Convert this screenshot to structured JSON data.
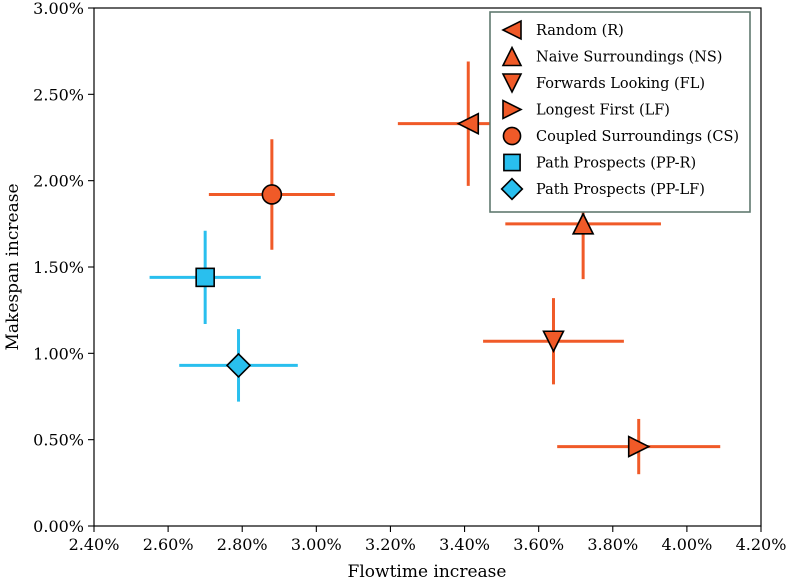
{
  "chart_data": {
    "type": "scatter",
    "title": "",
    "xlabel": "Flowtime increase",
    "ylabel": "Makespan increase",
    "xlim": [
      0.024,
      0.042
    ],
    "ylim": [
      0.0,
      0.03
    ],
    "xticks": [
      0.024,
      0.026,
      0.028,
      0.03,
      0.032,
      0.034,
      0.036,
      0.038,
      0.04,
      0.042
    ],
    "yticks": [
      0.0,
      0.005,
      0.01,
      0.015,
      0.02,
      0.025,
      0.03
    ],
    "xtick_labels": [
      "2.40%",
      "2.60%",
      "2.80%",
      "3.00%",
      "3.20%",
      "3.40%",
      "3.60%",
      "3.80%",
      "4.00%",
      "4.20%"
    ],
    "ytick_labels": [
      "0.00%",
      "0.50%",
      "1.00%",
      "1.50%",
      "2.00%",
      "2.50%",
      "3.00%"
    ],
    "grid": false,
    "legend_position": "top-right",
    "colors": {
      "orange": "#f05a28",
      "cyan": "#29bfee",
      "edge": "#000000"
    },
    "series": [
      {
        "name": "Random (R)",
        "marker": "triangle-left",
        "color": "#f05a28",
        "x": 0.0341,
        "y": 0.0233,
        "xerr": 0.0019,
        "yerr": 0.0036
      },
      {
        "name": "Naive Surroundings (NS)",
        "marker": "triangle-up",
        "color": "#f05a28",
        "x": 0.0372,
        "y": 0.0175,
        "xerr": 0.0021,
        "yerr": 0.0032
      },
      {
        "name": "Forwards Looking (FL)",
        "marker": "triangle-down",
        "color": "#f05a28",
        "x": 0.0364,
        "y": 0.0107,
        "xerr": 0.0019,
        "yerr": 0.0025
      },
      {
        "name": "Longest First (LF)",
        "marker": "triangle-right",
        "color": "#f05a28",
        "x": 0.0387,
        "y": 0.0046,
        "xerr": 0.0022,
        "yerr": 0.0016
      },
      {
        "name": "Coupled Surroundings (CS)",
        "marker": "circle",
        "color": "#f05a28",
        "x": 0.0288,
        "y": 0.0192,
        "xerr": 0.0017,
        "yerr": 0.0032
      },
      {
        "name": "Path Prospects (PP-R)",
        "marker": "square",
        "color": "#29bfee",
        "x": 0.027,
        "y": 0.0144,
        "xerr": 0.0015,
        "yerr": 0.0027
      },
      {
        "name": "Path Prospects (PP-LF)",
        "marker": "diamond",
        "color": "#29bfee",
        "x": 0.0279,
        "y": 0.0093,
        "xerr": 0.0016,
        "yerr": 0.0021
      }
    ]
  }
}
